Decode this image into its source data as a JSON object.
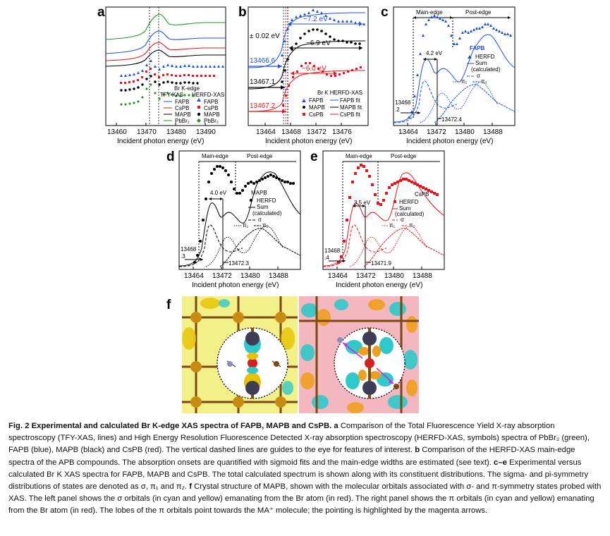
{
  "panels": {
    "a": {
      "label": "a",
      "xlabel": "Incident photon energy (eV)",
      "xticks": [
        "13460",
        "13470",
        "13480",
        "13490"
      ],
      "legend": {
        "edge": "Br K-edge",
        "tfy": "TFY-XAS",
        "herfd": "HERFD-XAS",
        "entries": [
          "FAPB",
          "CsPB",
          "MAPB",
          "PbBr₂"
        ]
      }
    },
    "b": {
      "label": "b",
      "xlabel": "Incident photon energy (eV)",
      "xticks": [
        "13464",
        "13468",
        "13472",
        "13476"
      ],
      "annotations": {
        "err": "± 0.02 eV",
        "w1": "−7.2 eV",
        "w2": "−6.9 eV",
        "w3": "−6.0 eV",
        "o1": "13466.6",
        "o2": "13467.1",
        "o3": "13467.2"
      },
      "legend": {
        "title": "Br K HERFD-XAS",
        "entries": [
          "FAPB",
          "MAPB",
          "CsPB"
        ],
        "fits": [
          "FAPB fit",
          "MAPB fit",
          "CsPB fit"
        ]
      }
    },
    "c": {
      "label": "c",
      "xlabel": "Incident photon energy (eV)",
      "xticks": [
        "13464",
        "13472",
        "13480",
        "13488"
      ],
      "main_edge": "Main-edge",
      "post_edge": "Post-edge",
      "width": "4.2 eV",
      "onset_a": "13468",
      "onset_b": ".2",
      "peak": "13472.4",
      "compound": "FAPB",
      "legend": [
        "HERFD",
        "Sum",
        "(calculated)",
        "σ",
        "π₁",
        "π₂"
      ]
    },
    "d": {
      "label": "d",
      "xlabel": "Incident photon energy (eV)",
      "xticks": [
        "13464",
        "13472",
        "13480",
        "13488"
      ],
      "main_edge": "Main-edge",
      "post_edge": "Post-edge",
      "width": "4.0 eV",
      "onset_a": "13468",
      "onset_b": ".3",
      "peak": "13472.3",
      "compound": "MAPB",
      "legend": [
        "HERFD",
        "Sum",
        "(calculated)",
        "σ",
        "π₁",
        "π₂"
      ]
    },
    "e": {
      "label": "e",
      "xlabel": "Incident photon energy (eV)",
      "xticks": [
        "13464",
        "13472",
        "13480",
        "13488"
      ],
      "main_edge": "Main-edge",
      "post_edge": "Post-edge",
      "width": "3.5 eV",
      "onset_a": "13468",
      "onset_b": ".4",
      "peak": "13471.9",
      "compound": "CsPB",
      "legend": [
        "HERFD",
        "Sum",
        "(calculated)",
        "σ",
        "π₁",
        "π₂"
      ]
    },
    "f": {
      "label": "f"
    }
  },
  "colors": {
    "fapb": "#1a52e6",
    "cspb": "#e8141a",
    "mapb": "#000000",
    "pbbr2": "#1a9b1a",
    "yellow_bg": "#f3f08a",
    "pink_bg": "#f4b7bf",
    "magenta": "#d826d8"
  },
  "caption": {
    "title": "Fig. 2 Experimental and calculated Br K-edge XAS spectra of FAPB, MAPB and CsPB.",
    "a_label": "a",
    "a_text": "Comparison of the Total Fluorescence Yield X-ray absorption spectroscopy (TFY-XAS, lines) and High Energy Resolution Fluorescence Detected X-ray absorption spectroscopy (HERFD-XAS, symbols) spectra of PbBr₂ (green), FAPB (blue), MAPB (black) and CsPB (red). The vertical dashed lines are guides to the eye for features of interest.",
    "b_label": "b",
    "b_text": "Comparison of the HERFD-XAS main-edge spectra of the APB compounds. The absorption onsets are quantified with sigmoid fits and the main-edge widths are estimated (see text).",
    "ce_label": "c–e",
    "ce_text": "Experimental versus calculated Br K XAS spectra for FAPB, MAPB and CsPB. The total calculated spectrum is shown along with its constituent distributions. The sigma- and pi-symmetry distributions of states are denoted as σ, π₁ and π₂.",
    "f_label": "f",
    "f_text": "Crystal structure of MAPB, shown with the molecular orbitals associated with σ- and π-symmetry states probed with XAS. The left panel shows the σ orbitals (in cyan and yellow) emanating from the Br atom (in red). The right panel shows the π orbitals (in cyan and yellow) emanating from the Br atom (in red). The lobes of the π orbitals point towards the MA⁺ molecule; the pointing is highlighted by the magenta arrows."
  }
}
